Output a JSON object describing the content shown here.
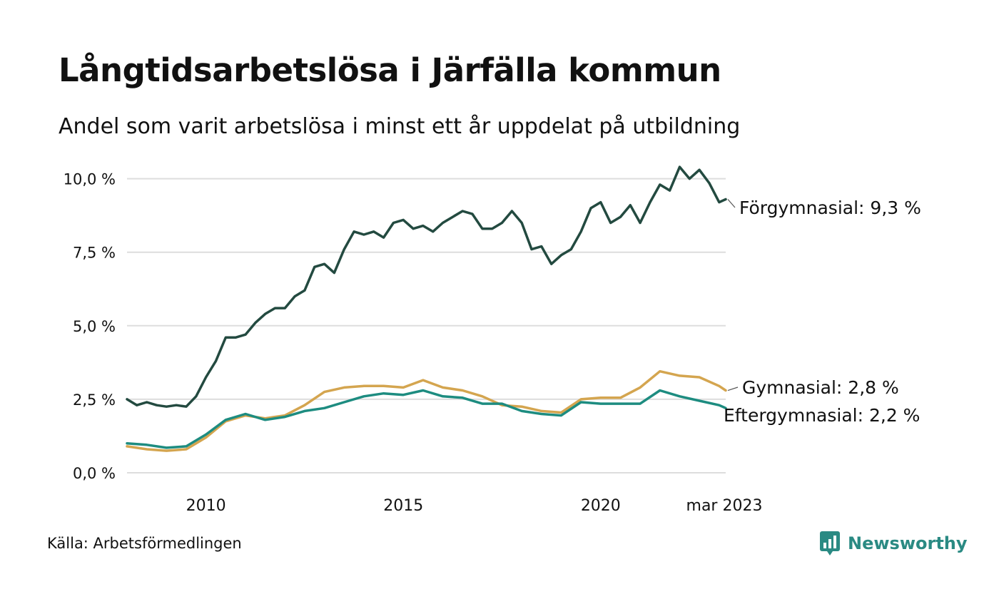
{
  "chart_data": {
    "type": "line",
    "title": "Långtidsarbetslösa i Järfälla kommun",
    "subtitle": "Andel som varit arbetslösa i minst ett år uppdelat på utbildning",
    "x_axis": {
      "type": "date",
      "range": [
        "2008-01",
        "2023-03"
      ],
      "ticks": [
        "2010",
        "2015",
        "2020",
        "mar 2023"
      ]
    },
    "y_axis": {
      "range": [
        0,
        10.5
      ],
      "ticks": [
        0,
        2.5,
        5,
        7.5,
        10
      ],
      "tick_labels": [
        "0,0 %",
        "2,5 %",
        "5,0 %",
        "7,5 %",
        "10,0 %"
      ],
      "grid": true
    },
    "legend": "direct labels at line ends",
    "series": [
      {
        "name": "Förgymnasial",
        "end_label": "Förgymnasial: 9,3 %",
        "color": "#234a40",
        "points": [
          [
            "2008-01",
            2.5
          ],
          [
            "2008-04",
            2.3
          ],
          [
            "2008-07",
            2.4
          ],
          [
            "2008-10",
            2.3
          ],
          [
            "2009-01",
            2.25
          ],
          [
            "2009-04",
            2.3
          ],
          [
            "2009-07",
            2.25
          ],
          [
            "2009-10",
            2.6
          ],
          [
            "2010-01",
            3.25
          ],
          [
            "2010-04",
            3.8
          ],
          [
            "2010-07",
            4.6
          ],
          [
            "2010-10",
            4.6
          ],
          [
            "2011-01",
            4.7
          ],
          [
            "2011-04",
            5.1
          ],
          [
            "2011-07",
            5.4
          ],
          [
            "2011-10",
            5.6
          ],
          [
            "2012-01",
            5.6
          ],
          [
            "2012-04",
            6.0
          ],
          [
            "2012-07",
            6.2
          ],
          [
            "2012-10",
            7.0
          ],
          [
            "2013-01",
            7.1
          ],
          [
            "2013-04",
            6.8
          ],
          [
            "2013-07",
            7.6
          ],
          [
            "2013-10",
            8.2
          ],
          [
            "2014-01",
            8.1
          ],
          [
            "2014-04",
            8.2
          ],
          [
            "2014-07",
            8.0
          ],
          [
            "2014-10",
            8.5
          ],
          [
            "2015-01",
            8.6
          ],
          [
            "2015-04",
            8.3
          ],
          [
            "2015-07",
            8.4
          ],
          [
            "2015-10",
            8.2
          ],
          [
            "2016-01",
            8.5
          ],
          [
            "2016-04",
            8.7
          ],
          [
            "2016-07",
            8.9
          ],
          [
            "2016-10",
            8.8
          ],
          [
            "2017-01",
            8.3
          ],
          [
            "2017-04",
            8.3
          ],
          [
            "2017-07",
            8.5
          ],
          [
            "2017-10",
            8.9
          ],
          [
            "2018-01",
            8.5
          ],
          [
            "2018-04",
            7.6
          ],
          [
            "2018-07",
            7.7
          ],
          [
            "2018-10",
            7.1
          ],
          [
            "2019-01",
            7.4
          ],
          [
            "2019-04",
            7.6
          ],
          [
            "2019-07",
            8.2
          ],
          [
            "2019-10",
            9.0
          ],
          [
            "2020-01",
            9.2
          ],
          [
            "2020-04",
            8.5
          ],
          [
            "2020-07",
            8.7
          ],
          [
            "2020-10",
            9.1
          ],
          [
            "2021-01",
            8.5
          ],
          [
            "2021-04",
            9.2
          ],
          [
            "2021-07",
            9.8
          ],
          [
            "2021-10",
            9.6
          ],
          [
            "2022-01",
            10.4
          ],
          [
            "2022-04",
            10.0
          ],
          [
            "2022-07",
            10.3
          ],
          [
            "2022-10",
            9.85
          ],
          [
            "2023-01",
            9.2
          ],
          [
            "2023-03",
            9.3
          ]
        ]
      },
      {
        "name": "Gymnasial",
        "end_label": "Gymnasial: 2,8 %",
        "color": "#d4a54f",
        "points": [
          [
            "2008-01",
            0.9
          ],
          [
            "2008-07",
            0.8
          ],
          [
            "2009-01",
            0.75
          ],
          [
            "2009-07",
            0.8
          ],
          [
            "2010-01",
            1.2
          ],
          [
            "2010-07",
            1.75
          ],
          [
            "2011-01",
            1.95
          ],
          [
            "2011-07",
            1.85
          ],
          [
            "2012-01",
            1.95
          ],
          [
            "2012-07",
            2.3
          ],
          [
            "2013-01",
            2.75
          ],
          [
            "2013-07",
            2.9
          ],
          [
            "2014-01",
            2.95
          ],
          [
            "2014-07",
            2.95
          ],
          [
            "2015-01",
            2.9
          ],
          [
            "2015-07",
            3.15
          ],
          [
            "2016-01",
            2.9
          ],
          [
            "2016-07",
            2.8
          ],
          [
            "2017-01",
            2.6
          ],
          [
            "2017-07",
            2.3
          ],
          [
            "2018-01",
            2.25
          ],
          [
            "2018-07",
            2.1
          ],
          [
            "2019-01",
            2.05
          ],
          [
            "2019-07",
            2.5
          ],
          [
            "2020-01",
            2.55
          ],
          [
            "2020-07",
            2.55
          ],
          [
            "2021-01",
            2.9
          ],
          [
            "2021-07",
            3.45
          ],
          [
            "2022-01",
            3.3
          ],
          [
            "2022-07",
            3.25
          ],
          [
            "2023-01",
            2.95
          ],
          [
            "2023-03",
            2.8
          ]
        ]
      },
      {
        "name": "Eftergymnasial",
        "end_label": "Eftergymnasial: 2,2 %",
        "color": "#1d8c80",
        "points": [
          [
            "2008-01",
            1.0
          ],
          [
            "2008-07",
            0.95
          ],
          [
            "2009-01",
            0.85
          ],
          [
            "2009-07",
            0.9
          ],
          [
            "2010-01",
            1.3
          ],
          [
            "2010-07",
            1.8
          ],
          [
            "2011-01",
            2.0
          ],
          [
            "2011-07",
            1.8
          ],
          [
            "2012-01",
            1.9
          ],
          [
            "2012-07",
            2.1
          ],
          [
            "2013-01",
            2.2
          ],
          [
            "2013-07",
            2.4
          ],
          [
            "2014-01",
            2.6
          ],
          [
            "2014-07",
            2.7
          ],
          [
            "2015-01",
            2.65
          ],
          [
            "2015-07",
            2.8
          ],
          [
            "2016-01",
            2.6
          ],
          [
            "2016-07",
            2.55
          ],
          [
            "2017-01",
            2.35
          ],
          [
            "2017-07",
            2.35
          ],
          [
            "2018-01",
            2.1
          ],
          [
            "2018-07",
            2.0
          ],
          [
            "2019-01",
            1.95
          ],
          [
            "2019-07",
            2.4
          ],
          [
            "2020-01",
            2.35
          ],
          [
            "2020-07",
            2.35
          ],
          [
            "2021-01",
            2.35
          ],
          [
            "2021-07",
            2.8
          ],
          [
            "2022-01",
            2.6
          ],
          [
            "2022-07",
            2.45
          ],
          [
            "2023-01",
            2.3
          ],
          [
            "2023-03",
            2.2
          ]
        ]
      }
    ]
  },
  "footer": {
    "source": "Källa: Arbetsförmedlingen",
    "brand": "Newsworthy",
    "brand_icon": "bar-chart-speech-bubble-icon",
    "brand_color": "#2a8a83"
  }
}
